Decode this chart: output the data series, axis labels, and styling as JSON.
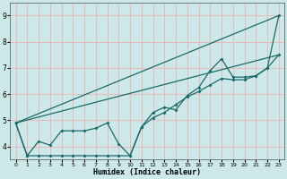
{
  "xlabel": "Humidex (Indice chaleur)",
  "bg_color": "#cce8e8",
  "grid_color": "#e8b8b8",
  "line_color": "#1a6b6b",
  "xlim": [
    -0.5,
    23.5
  ],
  "ylim": [
    3.5,
    9.5
  ],
  "x_ticks": [
    0,
    1,
    2,
    3,
    4,
    5,
    6,
    7,
    8,
    9,
    10,
    11,
    12,
    13,
    14,
    15,
    16,
    17,
    18,
    19,
    20,
    21,
    22,
    23
  ],
  "y_ticks": [
    4,
    5,
    6,
    7,
    8,
    9
  ],
  "series1_x": [
    0,
    1,
    2,
    3,
    4,
    5,
    6,
    7,
    8,
    9,
    10,
    11,
    12,
    13,
    14,
    15,
    16,
    17,
    18,
    19,
    20,
    21,
    22,
    23
  ],
  "series1_y": [
    4.9,
    3.65,
    4.2,
    4.05,
    4.6,
    4.6,
    4.6,
    4.7,
    4.9,
    4.1,
    3.65,
    4.75,
    5.3,
    5.5,
    5.4,
    5.95,
    6.25,
    6.9,
    7.35,
    6.65,
    6.65,
    6.7,
    7.0,
    9.0
  ],
  "series2_x": [
    0,
    1,
    2,
    3,
    4,
    5,
    6,
    7,
    8,
    9,
    10,
    11,
    12,
    13,
    14,
    15,
    16,
    17,
    18,
    19,
    20,
    21,
    22,
    23
  ],
  "series2_y": [
    4.9,
    3.65,
    3.65,
    3.65,
    3.65,
    3.65,
    3.65,
    3.65,
    3.65,
    3.65,
    3.65,
    4.75,
    5.1,
    5.3,
    5.6,
    5.9,
    6.1,
    6.35,
    6.6,
    6.55,
    6.55,
    6.7,
    7.0,
    7.5
  ],
  "series3_x": [
    0,
    23
  ],
  "series3_y": [
    4.9,
    9.0
  ],
  "series4_x": [
    0,
    23
  ],
  "series4_y": [
    4.9,
    7.5
  ]
}
